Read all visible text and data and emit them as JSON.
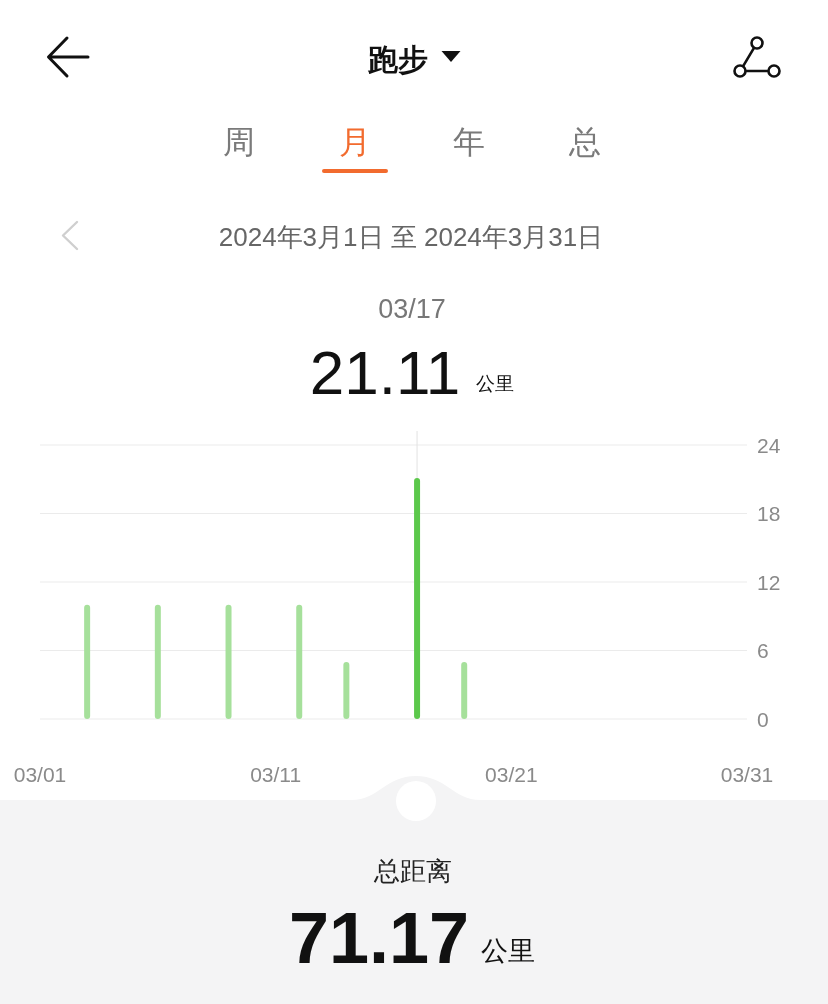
{
  "chart_data": {
    "type": "bar",
    "title": "跑步",
    "subtitle": "2024年3月1日 至 2024年3月31日",
    "x": [
      "2024-03-03",
      "2024-03-06",
      "2024-03-09",
      "2024-03-12",
      "2024-03-14",
      "2024-03-17",
      "2024-03-19"
    ],
    "values": [
      10,
      10,
      10,
      10,
      5,
      21.11,
      5
    ],
    "colors": [
      "#a6e09b",
      "#a6e09b",
      "#a6e09b",
      "#a6e09b",
      "#a6e09b",
      "#5cc84b",
      "#a6e09b"
    ],
    "xlim": [
      "2024-03-01",
      "2024-03-31"
    ],
    "xticks": [
      {
        "value": "2024-03-01",
        "label": "03/01"
      },
      {
        "value": "2024-03-11",
        "label": "03/11"
      },
      {
        "value": "2024-03-21",
        "label": "03/21"
      },
      {
        "value": "2024-03-31",
        "label": "03/31"
      }
    ],
    "ylim": [
      0,
      24
    ],
    "yticks": [
      0,
      6,
      12,
      18,
      24
    ],
    "grid": "y",
    "ref_lines": [
      {
        "axis": "x",
        "value": "2024-03-17",
        "color": "#e2e2e2"
      }
    ],
    "annotations": [
      "周",
      "月",
      "年",
      "总",
      "03/17",
      "21.11",
      "公里",
      "总距离",
      "71.17",
      "公里"
    ]
  }
}
